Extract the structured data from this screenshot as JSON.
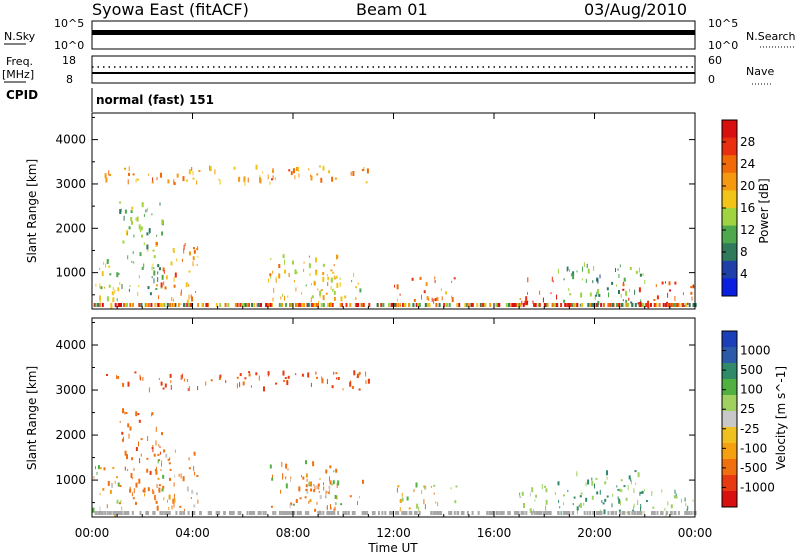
{
  "header": {
    "station": "Syowa East (fitACF)",
    "beam": "Beam 01",
    "date": "03/Aug/2010"
  },
  "top_panels": {
    "nsky_label": "N.Sky",
    "nsearch_label": "N.Search",
    "nsky_ticks": [
      "10^5",
      "10^0"
    ],
    "nsearch_ticks": [
      "10^5",
      "10^0"
    ],
    "freq_label": "Freq.",
    "freq_unit": "[MHz]",
    "freq_ticks": [
      "18",
      "8"
    ],
    "nave_label": "Nave",
    "nave_ticks": [
      "60",
      "0"
    ],
    "cpid_label": "CPID",
    "cpid_value": "normal (fast) 151"
  },
  "colors": {
    "power": [
      "#0b1fe0",
      "#1f3fa8",
      "#2f7a5a",
      "#4ea84e",
      "#9fd33f",
      "#f2c418",
      "#f59a10",
      "#f06a08",
      "#e83010",
      "#d81010"
    ],
    "velocity": [
      "#1a3fb8",
      "#2a5aa8",
      "#2e8a68",
      "#50b040",
      "#a0d060",
      "#c8c8c8",
      "#f0c020",
      "#f5a010",
      "#f07010",
      "#e83a10",
      "#d81010"
    ],
    "ground": "#a8a8a8"
  },
  "chart_data": [
    {
      "type": "heatmap",
      "title": "",
      "xlabel": "",
      "ylabel": "Slant Range [km]",
      "x_ticks": [
        "00:00",
        "04:00",
        "08:00",
        "12:00",
        "16:00",
        "20:00",
        "00:00"
      ],
      "y_ticks": [
        1000,
        2000,
        3000,
        4000
      ],
      "xlim_hours": [
        0,
        24
      ],
      "ylim": [
        180,
        4600
      ],
      "colorbar": {
        "label": "Power [dB]",
        "ticks": [
          "28",
          "24",
          "20",
          "16",
          "12",
          "8",
          "4"
        ],
        "range": [
          0,
          30
        ]
      },
      "regions": [
        {
          "t0": 0.0,
          "t1": 1.2,
          "r0": 200,
          "r1": 1300,
          "value": 14
        },
        {
          "t0": 1.0,
          "t1": 2.8,
          "r0": 400,
          "r1": 2600,
          "value": 12
        },
        {
          "t0": 2.5,
          "t1": 4.2,
          "r0": 250,
          "r1": 1700,
          "value": 20
        },
        {
          "t0": 7.0,
          "t1": 9.8,
          "r0": 300,
          "r1": 1400,
          "value": 18
        },
        {
          "t0": 8.5,
          "t1": 10.8,
          "r0": 400,
          "r1": 1000,
          "value": 16
        },
        {
          "t0": 12.0,
          "t1": 14.5,
          "r0": 350,
          "r1": 900,
          "value": 22
        },
        {
          "t0": 17.0,
          "t1": 18.5,
          "r0": 300,
          "r1": 900,
          "value": 24
        },
        {
          "t0": 18.5,
          "t1": 22.0,
          "r0": 250,
          "r1": 1200,
          "value": 10
        },
        {
          "t0": 21.0,
          "t1": 24.0,
          "r0": 220,
          "r1": 800,
          "value": 26
        },
        {
          "t0": 0.5,
          "t1": 11.0,
          "r0": 3000,
          "r1": 3400,
          "value": 20
        }
      ]
    },
    {
      "type": "heatmap",
      "title": "",
      "xlabel": "Time UT",
      "ylabel": "Slant Range [km]",
      "x_ticks": [
        "00:00",
        "04:00",
        "08:00",
        "12:00",
        "16:00",
        "20:00",
        "00:00"
      ],
      "y_ticks": [
        1000,
        2000,
        3000,
        4000
      ],
      "xlim_hours": [
        0,
        24
      ],
      "ylim": [
        180,
        4600
      ],
      "colorbar": {
        "label": "Velocity [m s^-1]",
        "ticks": [
          "1000",
          "500",
          "100",
          "25",
          "-25",
          "-100",
          "-500",
          "-1000"
        ],
        "range": [
          -1000,
          1000
        ]
      },
      "regions": [
        {
          "t0": 0.0,
          "t1": 1.2,
          "r0": 200,
          "r1": 1300,
          "value": -100
        },
        {
          "t0": 1.0,
          "t1": 2.8,
          "r0": 400,
          "r1": 2600,
          "value": -300
        },
        {
          "t0": 2.5,
          "t1": 4.2,
          "r0": 250,
          "r1": 1700,
          "value": -200
        },
        {
          "t0": 7.0,
          "t1": 9.8,
          "r0": 300,
          "r1": 1400,
          "value": -150
        },
        {
          "t0": 8.5,
          "t1": 10.8,
          "r0": 400,
          "r1": 1000,
          "value": -80
        },
        {
          "t0": 12.0,
          "t1": 14.5,
          "r0": 350,
          "r1": 900,
          "value": 80
        },
        {
          "t0": 17.0,
          "t1": 18.5,
          "r0": 300,
          "r1": 900,
          "value": 150
        },
        {
          "t0": 18.5,
          "t1": 22.0,
          "r0": 250,
          "r1": 1200,
          "value": 600
        },
        {
          "t0": 21.0,
          "t1": 24.0,
          "r0": 220,
          "r1": 800,
          "value": 400
        },
        {
          "t0": 0.5,
          "t1": 11.0,
          "r0": 3000,
          "r1": 3400,
          "value": -500
        }
      ]
    }
  ]
}
